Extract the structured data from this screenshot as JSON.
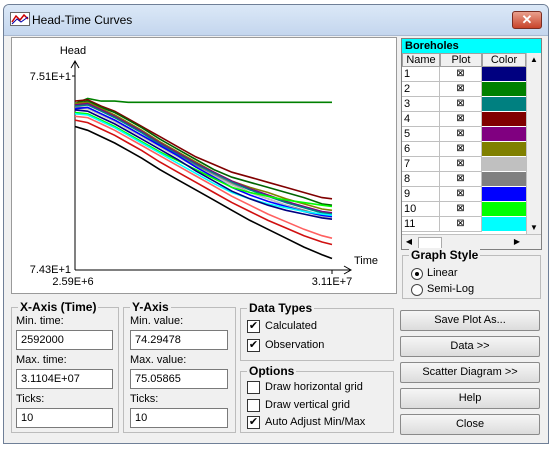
{
  "window": {
    "title": "Head-Time Curves",
    "close_symbol": "✕"
  },
  "chart_data": {
    "type": "line",
    "ylabel": "Head",
    "xlabel": "Time",
    "y_max_label": "7.51E+1",
    "y_min_label": "7.43E+1",
    "x_min_label": "2.59E+6",
    "x_max_label": "3.11E+7",
    "xlim": [
      2592000,
      31104000
    ],
    "ylim": [
      74.29478,
      75.05865
    ],
    "x": [
      2592000,
      4000000,
      5500000,
      7000000,
      8500000,
      10000000,
      12000000,
      14000000,
      16000000,
      18000000,
      20000000,
      22000000,
      24000000,
      26000000,
      28000000,
      30000000,
      31104000
    ],
    "series": [
      {
        "color": "#008000",
        "values": [
          74.95,
          74.97,
          74.96,
          74.96,
          74.955,
          74.955,
          74.955,
          74.955,
          74.955,
          74.955,
          74.955,
          74.955,
          74.955,
          74.955,
          74.955,
          74.955,
          74.955
        ]
      },
      {
        "color": "#800000",
        "values": [
          74.96,
          74.965,
          74.94,
          74.92,
          74.89,
          74.86,
          74.82,
          74.78,
          74.74,
          74.71,
          74.68,
          74.66,
          74.64,
          74.62,
          74.6,
          74.58,
          74.575
        ]
      },
      {
        "color": "#006400",
        "values": [
          74.95,
          74.96,
          74.935,
          74.915,
          74.885,
          74.855,
          74.81,
          74.77,
          74.73,
          74.69,
          74.66,
          74.64,
          74.62,
          74.6,
          74.58,
          74.555,
          74.55
        ]
      },
      {
        "color": "#808000",
        "values": [
          74.95,
          74.955,
          74.93,
          74.905,
          74.875,
          74.845,
          74.8,
          74.76,
          74.72,
          74.68,
          74.645,
          74.62,
          74.6,
          74.575,
          74.555,
          74.535,
          74.53
        ]
      },
      {
        "color": "#800080",
        "values": [
          74.945,
          74.95,
          74.925,
          74.9,
          74.87,
          74.84,
          74.795,
          74.755,
          74.715,
          74.68,
          74.645,
          74.615,
          74.59,
          74.565,
          74.545,
          74.525,
          74.52
        ]
      },
      {
        "color": "#008080",
        "values": [
          74.94,
          74.945,
          74.92,
          74.895,
          74.865,
          74.835,
          74.79,
          74.75,
          74.71,
          74.675,
          74.64,
          74.61,
          74.585,
          74.56,
          74.54,
          74.52,
          74.515
        ]
      },
      {
        "color": "#808080",
        "values": [
          74.935,
          74.935,
          74.91,
          74.885,
          74.855,
          74.825,
          74.785,
          74.745,
          74.705,
          74.67,
          74.635,
          74.6,
          74.575,
          74.55,
          74.53,
          74.51,
          74.505
        ]
      },
      {
        "color": "#c0c0c0",
        "values": [
          74.93,
          74.93,
          74.905,
          74.88,
          74.85,
          74.82,
          74.78,
          74.74,
          74.7,
          74.665,
          74.63,
          74.6,
          74.575,
          74.55,
          74.525,
          74.505,
          74.5
        ]
      },
      {
        "color": "#0000ff",
        "values": [
          74.93,
          74.935,
          74.91,
          74.885,
          74.855,
          74.825,
          74.785,
          74.745,
          74.7,
          74.66,
          74.62,
          74.59,
          74.565,
          74.545,
          74.525,
          74.51,
          74.505
        ]
      },
      {
        "color": "#00ff00",
        "values": [
          74.915,
          74.91,
          74.885,
          74.86,
          74.83,
          74.8,
          74.76,
          74.725,
          74.69,
          74.655,
          74.62,
          74.6,
          74.585,
          74.57,
          74.56,
          74.55,
          74.545
        ]
      },
      {
        "color": "#00ffff",
        "values": [
          74.91,
          74.905,
          74.88,
          74.855,
          74.825,
          74.795,
          74.755,
          74.715,
          74.675,
          74.635,
          74.6,
          74.575,
          74.555,
          74.54,
          74.525,
          74.515,
          74.51
        ]
      },
      {
        "color": "#000080",
        "values": [
          74.925,
          74.92,
          74.895,
          74.87,
          74.84,
          74.81,
          74.77,
          74.73,
          74.685,
          74.645,
          74.605,
          74.575,
          74.55,
          74.53,
          74.515,
          74.5,
          74.495
        ]
      },
      {
        "color": "#ff6060",
        "values": [
          74.9,
          74.895,
          74.87,
          74.845,
          74.815,
          74.785,
          74.745,
          74.705,
          74.665,
          74.625,
          74.585,
          74.55,
          74.515,
          74.485,
          74.455,
          74.43,
          74.42
        ]
      },
      {
        "color": "#d01010",
        "values": [
          74.885,
          74.875,
          74.85,
          74.825,
          74.795,
          74.765,
          74.72,
          74.68,
          74.64,
          74.6,
          74.56,
          74.525,
          74.49,
          74.46,
          74.43,
          74.405,
          74.395
        ]
      },
      {
        "color": "#000000",
        "values": [
          74.86,
          74.845,
          74.82,
          74.795,
          74.765,
          74.735,
          74.69,
          74.65,
          74.61,
          74.57,
          74.53,
          74.49,
          74.455,
          74.42,
          74.385,
          74.355,
          74.34
        ]
      }
    ]
  },
  "boreholes": {
    "title": "Boreholes",
    "columns": [
      "Name",
      "Plot",
      "Color"
    ],
    "check_symbol": "⊠",
    "rows": [
      {
        "name": "1",
        "color": "#000080"
      },
      {
        "name": "2",
        "color": "#008000"
      },
      {
        "name": "3",
        "color": "#008080"
      },
      {
        "name": "4",
        "color": "#800000"
      },
      {
        "name": "5",
        "color": "#800080"
      },
      {
        "name": "6",
        "color": "#808000"
      },
      {
        "name": "7",
        "color": "#c0c0c0"
      },
      {
        "name": "8",
        "color": "#808080"
      },
      {
        "name": "9",
        "color": "#0000ff"
      },
      {
        "name": "10",
        "color": "#00ff00"
      },
      {
        "name": "11",
        "color": "#00ffff"
      }
    ]
  },
  "graph_style": {
    "title": "Graph Style",
    "options": [
      "Linear",
      "Semi-Log"
    ],
    "selected": "Linear"
  },
  "x_axis": {
    "title": "X-Axis (Time)",
    "min_label": "Min. time:",
    "min_value": "2592000",
    "max_label": "Max. time:",
    "max_value": "3.1104E+07",
    "ticks_label": "Ticks:",
    "ticks_value": "10"
  },
  "y_axis": {
    "title": "Y-Axis",
    "min_label": "Min. value:",
    "min_value": "74.29478",
    "max_label": "Max. value:",
    "max_value": "75.05865",
    "ticks_label": "Ticks:",
    "ticks_value": "10"
  },
  "data_types": {
    "title": "Data Types",
    "calculated": "Calculated",
    "observation": "Observation"
  },
  "options": {
    "title": "Options",
    "h_grid": "Draw horizontal grid",
    "v_grid": "Draw vertical grid",
    "auto_adjust": "Auto Adjust Min/Max"
  },
  "buttons": {
    "save_plot": "Save Plot As...",
    "data": "Data >>",
    "scatter": "Scatter Diagram >>",
    "help": "Help",
    "close": "Close"
  }
}
